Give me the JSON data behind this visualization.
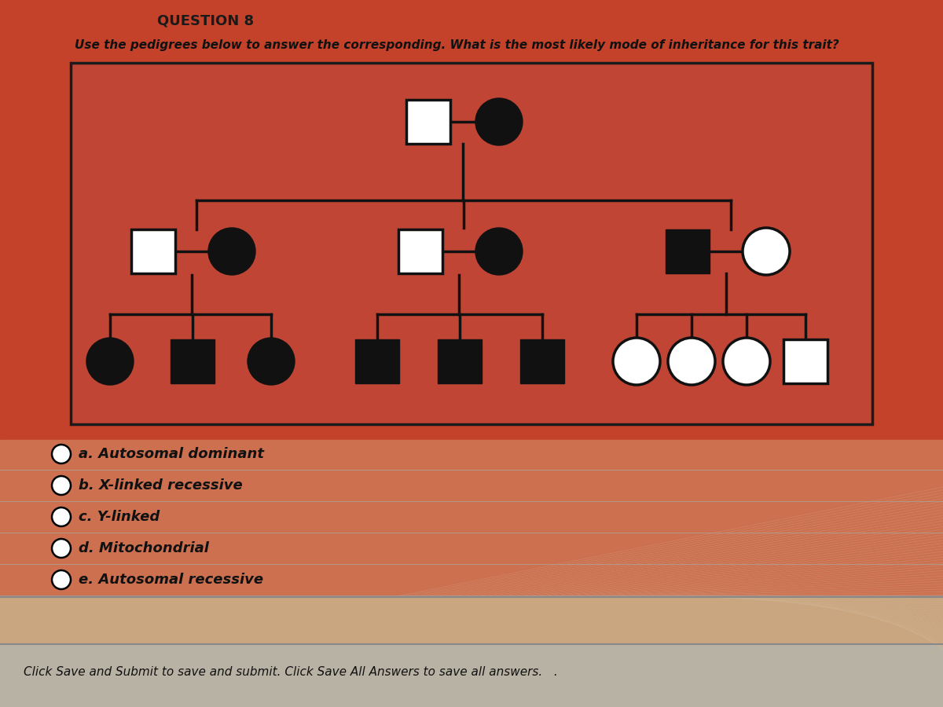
{
  "bg_red": "#c5422a",
  "bg_peach": "#d4916a",
  "bg_tan": "#c9a882",
  "bg_footer": "#b8b0a0",
  "pedigree_box_bg": "#c04535",
  "pedigree_box_edge": "#1a1a1a",
  "symbol_filled": "#111111",
  "symbol_empty_fill": "#ffffff",
  "symbol_empty_edge": "#111111",
  "line_color": "#111111",
  "question_text": "QUESTION 8",
  "subtitle": "Use the pedigrees below to answer the corresponding. What is the most likely mode of inheritance for this trait?",
  "options": [
    "a. Autosomal dominant",
    "b. X-linked recessive",
    "c. Y-linked",
    "d. Mitochondrial",
    "e. Autosomal recessive"
  ],
  "footer": "Click Save and Submit to save and submit. Click Save All Answers to save all answers.   ."
}
